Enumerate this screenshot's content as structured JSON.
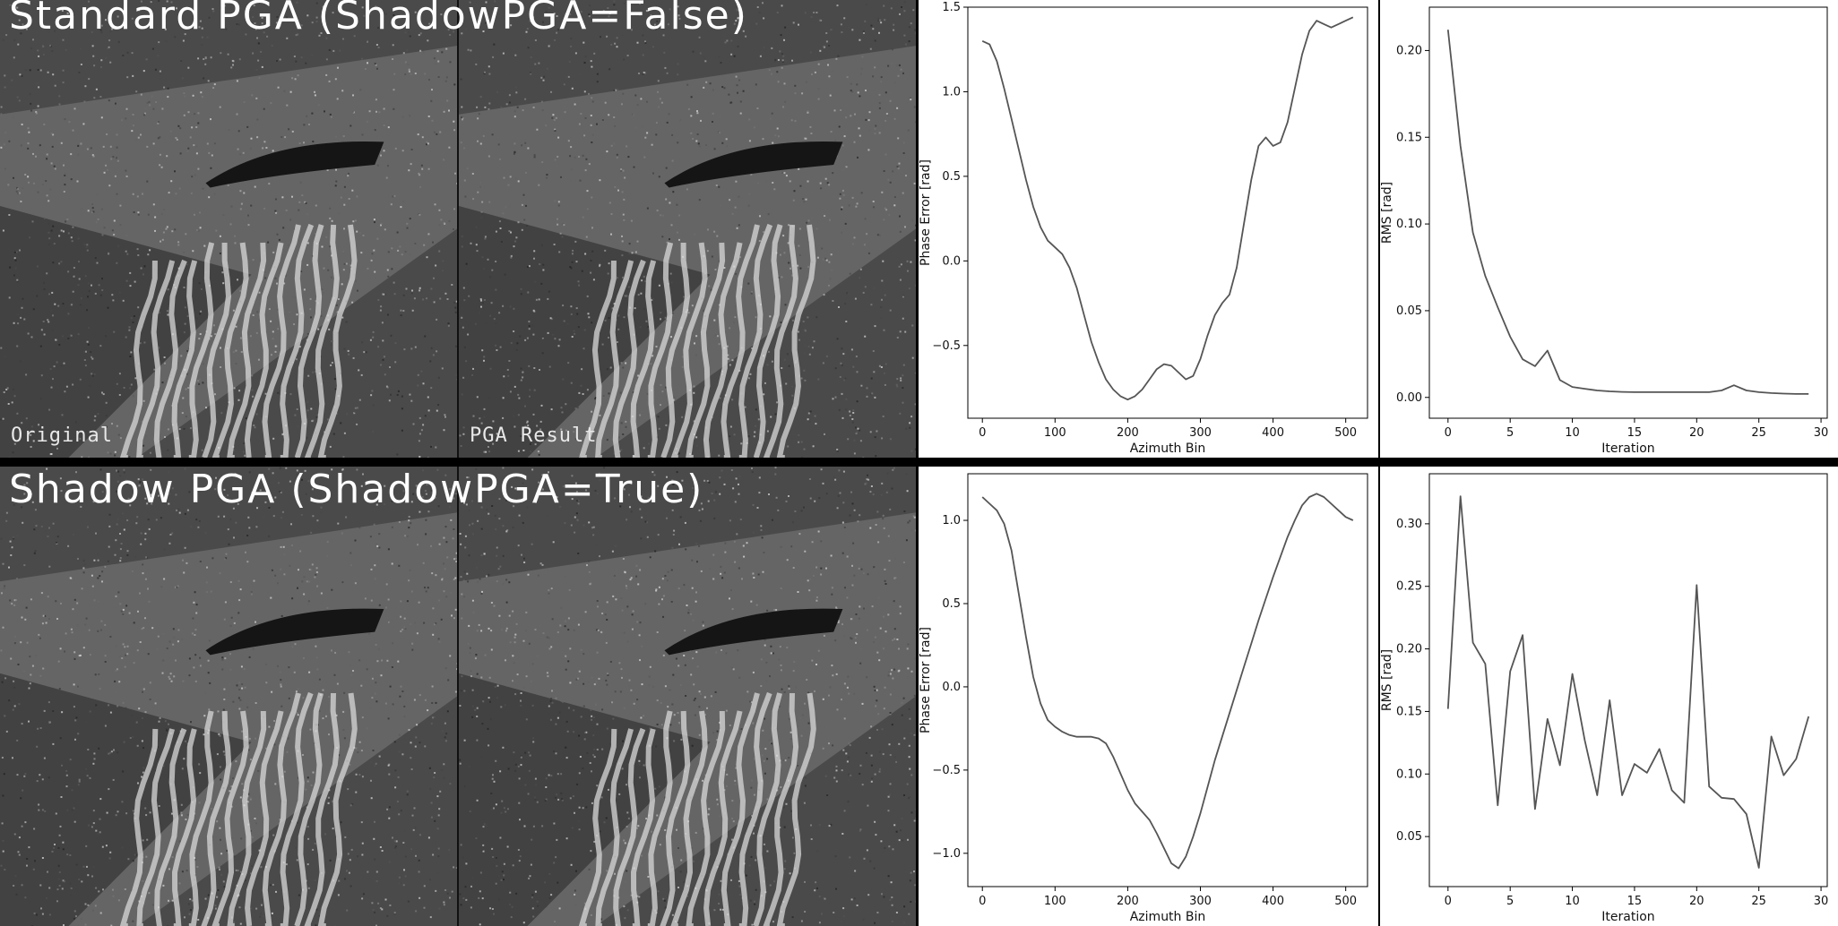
{
  "rows": [
    {
      "title": "Standard PGA (ShadowPGA=False)",
      "image_captions": [
        "Original",
        "PGA Result"
      ]
    },
    {
      "title": "Shadow PGA (ShadowPGA=True)",
      "image_captions": [
        "",
        ""
      ]
    }
  ],
  "colors": {
    "line": "#555555",
    "axis": "#000000",
    "background": "#ffffff"
  },
  "chart_data": [
    {
      "type": "line",
      "xlabel": "Azimuth Bin",
      "ylabel": "Phase Error [rad]",
      "xlim": [
        -20,
        530
      ],
      "ylim": [
        -0.93,
        1.5
      ],
      "xticks": [
        0,
        100,
        200,
        300,
        400,
        500
      ],
      "yticks": [
        -0.5,
        0.0,
        0.5,
        1.0,
        1.5
      ],
      "ytick_labels": [
        "−0.5",
        "0.0",
        "0.5",
        "1.0",
        "1.5"
      ],
      "x": [
        0,
        10,
        20,
        30,
        40,
        50,
        60,
        70,
        80,
        90,
        100,
        110,
        120,
        130,
        140,
        150,
        160,
        170,
        180,
        190,
        200,
        210,
        220,
        230,
        240,
        250,
        260,
        270,
        280,
        290,
        300,
        310,
        320,
        330,
        340,
        350,
        360,
        370,
        380,
        390,
        400,
        410,
        420,
        430,
        440,
        450,
        460,
        470,
        480,
        490,
        500,
        510
      ],
      "y": [
        1.3,
        1.28,
        1.18,
        1.02,
        0.84,
        0.66,
        0.48,
        0.32,
        0.2,
        0.12,
        0.08,
        0.04,
        -0.04,
        -0.16,
        -0.32,
        -0.48,
        -0.6,
        -0.7,
        -0.76,
        -0.8,
        -0.82,
        -0.8,
        -0.76,
        -0.7,
        -0.64,
        -0.61,
        -0.62,
        -0.66,
        -0.7,
        -0.68,
        -0.58,
        -0.44,
        -0.32,
        -0.25,
        -0.2,
        -0.04,
        0.22,
        0.48,
        0.68,
        0.73,
        0.68,
        0.7,
        0.82,
        1.02,
        1.22,
        1.36,
        1.42,
        1.4,
        1.38,
        1.4,
        1.42,
        1.44
      ]
    },
    {
      "type": "line",
      "xlabel": "Iteration",
      "ylabel": "RMS [rad]",
      "xlim": [
        -1.5,
        30.5
      ],
      "ylim": [
        -0.012,
        0.225
      ],
      "xticks": [
        0,
        5,
        10,
        15,
        20,
        25,
        30
      ],
      "yticks": [
        0.0,
        0.05,
        0.1,
        0.15,
        0.2
      ],
      "ytick_labels": [
        "0.00",
        "0.05",
        "0.10",
        "0.15",
        "0.20"
      ],
      "x": [
        0,
        1,
        2,
        3,
        4,
        5,
        6,
        7,
        8,
        9,
        10,
        11,
        12,
        13,
        14,
        15,
        16,
        17,
        18,
        19,
        20,
        21,
        22,
        23,
        24,
        25,
        26,
        27,
        28,
        29
      ],
      "y": [
        0.212,
        0.145,
        0.095,
        0.07,
        0.052,
        0.035,
        0.022,
        0.018,
        0.027,
        0.01,
        0.006,
        0.005,
        0.004,
        0.0035,
        0.0032,
        0.003,
        0.003,
        0.003,
        0.003,
        0.003,
        0.003,
        0.003,
        0.004,
        0.007,
        0.004,
        0.003,
        0.0025,
        0.0022,
        0.002,
        0.002
      ]
    },
    {
      "type": "line",
      "xlabel": "Azimuth Bin",
      "ylabel": "Phase Error [rad]",
      "xlim": [
        -20,
        530
      ],
      "ylim": [
        -1.2,
        1.28
      ],
      "xticks": [
        0,
        100,
        200,
        300,
        400,
        500
      ],
      "yticks": [
        -1.0,
        -0.5,
        0.0,
        0.5,
        1.0
      ],
      "ytick_labels": [
        "−1.0",
        "−0.5",
        "0.0",
        "0.5",
        "1.0"
      ],
      "x": [
        0,
        10,
        20,
        30,
        40,
        50,
        60,
        70,
        80,
        90,
        100,
        110,
        120,
        130,
        140,
        150,
        160,
        170,
        180,
        190,
        200,
        210,
        220,
        230,
        240,
        250,
        260,
        270,
        280,
        290,
        300,
        310,
        320,
        330,
        340,
        350,
        360,
        370,
        380,
        390,
        400,
        410,
        420,
        430,
        440,
        450,
        460,
        470,
        480,
        490,
        500,
        510
      ],
      "y": [
        1.14,
        1.1,
        1.06,
        0.98,
        0.82,
        0.56,
        0.3,
        0.06,
        -0.1,
        -0.2,
        -0.24,
        -0.27,
        -0.29,
        -0.3,
        -0.3,
        -0.3,
        -0.31,
        -0.34,
        -0.42,
        -0.52,
        -0.62,
        -0.7,
        -0.75,
        -0.8,
        -0.88,
        -0.97,
        -1.06,
        -1.09,
        -1.02,
        -0.9,
        -0.76,
        -0.6,
        -0.44,
        -0.3,
        -0.16,
        -0.02,
        0.12,
        0.26,
        0.4,
        0.53,
        0.66,
        0.78,
        0.9,
        1.0,
        1.09,
        1.14,
        1.16,
        1.14,
        1.1,
        1.06,
        1.02,
        1.0
      ]
    },
    {
      "type": "line",
      "xlabel": "Iteration",
      "ylabel": "RMS [rad]",
      "xlim": [
        -1.5,
        30.5
      ],
      "ylim": [
        0.01,
        0.34
      ],
      "xticks": [
        0,
        5,
        10,
        15,
        20,
        25,
        30
      ],
      "yticks": [
        0.05,
        0.1,
        0.15,
        0.2,
        0.25,
        0.3
      ],
      "ytick_labels": [
        "0.05",
        "0.10",
        "0.15",
        "0.20",
        "0.25",
        "0.30"
      ],
      "x": [
        0,
        1,
        2,
        3,
        4,
        5,
        6,
        7,
        8,
        9,
        10,
        11,
        12,
        13,
        14,
        15,
        16,
        17,
        18,
        19,
        20,
        21,
        22,
        23,
        24,
        25,
        26,
        27,
        28,
        29
      ],
      "y": [
        0.152,
        0.322,
        0.205,
        0.188,
        0.075,
        0.182,
        0.211,
        0.072,
        0.144,
        0.107,
        0.18,
        0.127,
        0.083,
        0.159,
        0.083,
        0.108,
        0.101,
        0.12,
        0.087,
        0.077,
        0.251,
        0.09,
        0.081,
        0.08,
        0.068,
        0.025,
        0.13,
        0.099,
        0.112,
        0.146
      ]
    }
  ]
}
